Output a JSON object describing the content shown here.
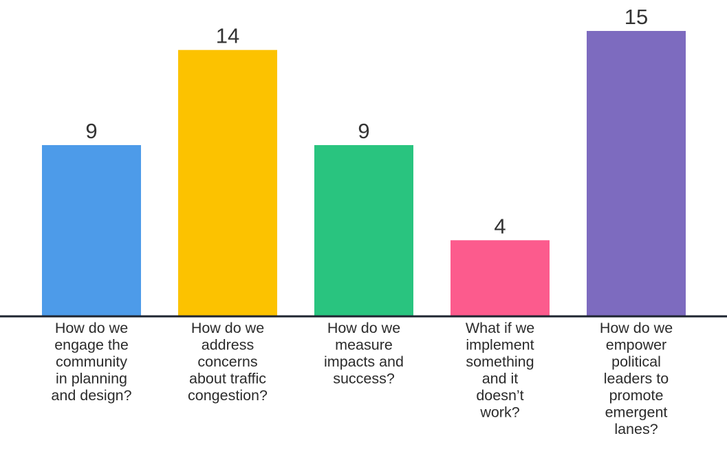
{
  "chart_data": {
    "type": "bar",
    "categories": [
      "How do we engage the community in planning and design?",
      "How do we address concerns about traffic congestion?",
      "How do we measure impacts and success?",
      "What if we implement something and it doesn’t work?",
      "How do we empower political leaders to promote emergent lanes?"
    ],
    "category_lines": [
      [
        "How do we",
        "engage the",
        "community",
        "in planning",
        "and design?"
      ],
      [
        "How do we",
        "address",
        "concerns",
        "about traffic",
        "congestion?"
      ],
      [
        "How do we",
        "measure",
        "impacts and",
        "success?"
      ],
      [
        "What if we",
        "implement",
        "something",
        "and it",
        "doesn’t",
        "work?"
      ],
      [
        "How do we",
        "empower",
        "political",
        "leaders to",
        "promote",
        "emergent",
        "lanes?"
      ]
    ],
    "values": [
      9,
      14,
      9,
      4,
      15
    ],
    "colors": [
      "#4d9be9",
      "#fcc200",
      "#29c47f",
      "#fc5b8d",
      "#7d6bbf"
    ],
    "ylim": [
      0,
      15
    ],
    "grid": false,
    "legend": "none",
    "title": "",
    "xlabel": "",
    "ylabel": ""
  },
  "colors": {
    "baseline": "#1e2430",
    "label_text": "#2b2b2b"
  }
}
